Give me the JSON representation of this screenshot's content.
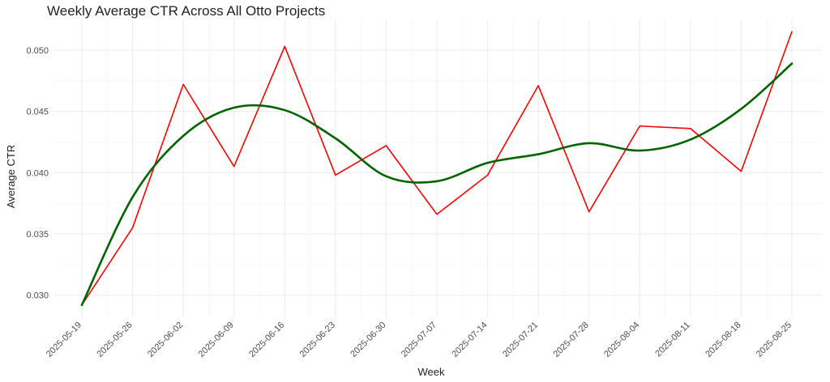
{
  "chart_data": {
    "type": "line",
    "title": "Weekly Average CTR Across All Otto Projects",
    "xlabel": "Week",
    "ylabel": "Average CTR",
    "x": [
      "2025-05-19",
      "2025-05-26",
      "2025-06-02",
      "2025-06-09",
      "2025-06-16",
      "2025-06-23",
      "2025-06-30",
      "2025-07-07",
      "2025-07-14",
      "2025-07-21",
      "2025-07-28",
      "2025-08-04",
      "2025-08-11",
      "2025-08-18",
      "2025-08-25"
    ],
    "ylim": [
      0.0282,
      0.0525
    ],
    "y_ticks": [
      "0.030",
      "0.035",
      "0.040",
      "0.045",
      "0.050"
    ],
    "grid": true,
    "series": [
      {
        "kind": "observed",
        "color": "#ff0000",
        "values": [
          0.0292,
          0.0355,
          0.0472,
          0.0405,
          0.0503,
          0.0398,
          0.0422,
          0.0366,
          0.0398,
          0.0471,
          0.0368,
          0.0438,
          0.0436,
          0.0401,
          0.0515
        ]
      },
      {
        "kind": "smoothed",
        "color": "#006400",
        "values": [
          0.0292,
          0.038,
          0.043,
          0.0453,
          0.0451,
          0.0428,
          0.0397,
          0.0393,
          0.0408,
          0.0415,
          0.0424,
          0.0418,
          0.0427,
          0.0452,
          0.0489
        ]
      }
    ]
  }
}
